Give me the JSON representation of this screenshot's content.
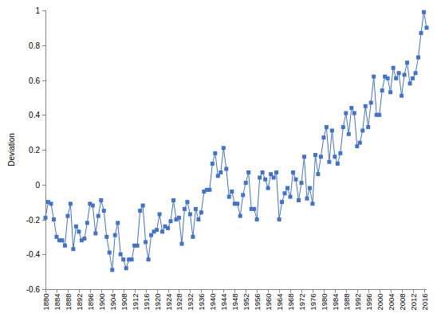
{
  "chart_data": {
    "type": "line",
    "y_label": "Deviation",
    "x": [
      1880,
      1881,
      1882,
      1883,
      1884,
      1885,
      1886,
      1887,
      1888,
      1889,
      1890,
      1891,
      1892,
      1893,
      1894,
      1895,
      1896,
      1897,
      1898,
      1899,
      1900,
      1901,
      1902,
      1903,
      1904,
      1905,
      1906,
      1907,
      1908,
      1909,
      1910,
      1911,
      1912,
      1913,
      1914,
      1915,
      1916,
      1917,
      1918,
      1919,
      1920,
      1921,
      1922,
      1923,
      1924,
      1925,
      1926,
      1927,
      1928,
      1929,
      1930,
      1931,
      1932,
      1933,
      1934,
      1935,
      1936,
      1937,
      1938,
      1939,
      1940,
      1941,
      1942,
      1943,
      1944,
      1945,
      1946,
      1947,
      1948,
      1949,
      1950,
      1951,
      1952,
      1953,
      1954,
      1955,
      1956,
      1957,
      1958,
      1959,
      1960,
      1961,
      1962,
      1963,
      1964,
      1965,
      1966,
      1967,
      1968,
      1969,
      1970,
      1971,
      1972,
      1973,
      1974,
      1975,
      1976,
      1977,
      1978,
      1979,
      1980,
      1981,
      1982,
      1983,
      1984,
      1985,
      1986,
      1987,
      1988,
      1989,
      1990,
      1991,
      1992,
      1993,
      1994,
      1995,
      1996,
      1997,
      1998,
      1999,
      2000,
      2001,
      2002,
      2003,
      2004,
      2005,
      2006,
      2007,
      2008,
      2009,
      2010,
      2011,
      2012,
      2013,
      2014,
      2015,
      2016,
      2017
    ],
    "values": [
      -0.19,
      -0.1,
      -0.11,
      -0.2,
      -0.3,
      -0.32,
      -0.32,
      -0.35,
      -0.18,
      -0.11,
      -0.37,
      -0.24,
      -0.27,
      -0.32,
      -0.31,
      -0.22,
      -0.11,
      -0.12,
      -0.28,
      -0.18,
      -0.09,
      -0.15,
      -0.3,
      -0.39,
      -0.49,
      -0.29,
      -0.22,
      -0.4,
      -0.43,
      -0.48,
      -0.43,
      -0.43,
      -0.35,
      -0.35,
      -0.15,
      -0.12,
      -0.33,
      -0.43,
      -0.29,
      -0.27,
      -0.26,
      -0.17,
      -0.27,
      -0.24,
      -0.25,
      -0.21,
      -0.09,
      -0.2,
      -0.19,
      -0.34,
      -0.14,
      -0.1,
      -0.17,
      -0.3,
      -0.14,
      -0.2,
      -0.16,
      -0.04,
      -0.03,
      -0.03,
      0.12,
      0.18,
      0.05,
      0.07,
      0.21,
      0.09,
      -0.07,
      -0.04,
      -0.11,
      -0.11,
      -0.18,
      -0.06,
      0.01,
      0.07,
      -0.14,
      -0.14,
      -0.2,
      0.04,
      0.07,
      0.03,
      -0.02,
      0.06,
      0.04,
      0.07,
      -0.2,
      -0.1,
      -0.05,
      -0.02,
      -0.07,
      0.07,
      0.03,
      -0.09,
      0.01,
      0.16,
      -0.08,
      -0.02,
      -0.11,
      0.17,
      0.06,
      0.16,
      0.27,
      0.33,
      0.13,
      0.31,
      0.16,
      0.12,
      0.18,
      0.33,
      0.41,
      0.29,
      0.44,
      0.41,
      0.22,
      0.24,
      0.31,
      0.45,
      0.33,
      0.47,
      0.62,
      0.4,
      0.4,
      0.54,
      0.62,
      0.61,
      0.53,
      0.67,
      0.61,
      0.64,
      0.51,
      0.63,
      0.7,
      0.58,
      0.61,
      0.64,
      0.73,
      0.87,
      0.99,
      0.9
    ],
    "color": "#4472c4",
    "marker": "square",
    "line_style": "solid",
    "grid": false,
    "xlim": [
      1880,
      2017
    ],
    "xticks": [
      1880,
      1884,
      1888,
      1892,
      1896,
      1900,
      1904,
      1908,
      1912,
      1916,
      1920,
      1924,
      1928,
      1932,
      1936,
      1940,
      1944,
      1948,
      1952,
      1956,
      1960,
      1964,
      1968,
      1972,
      1976,
      1980,
      1984,
      1988,
      1992,
      1996,
      2000,
      2004,
      2008,
      2012,
      2016
    ],
    "ylim": [
      -0.6,
      1
    ],
    "yticks": [
      -0.6,
      -0.4,
      -0.2,
      0,
      0.2,
      0.4,
      0.6,
      0.8,
      1
    ]
  }
}
